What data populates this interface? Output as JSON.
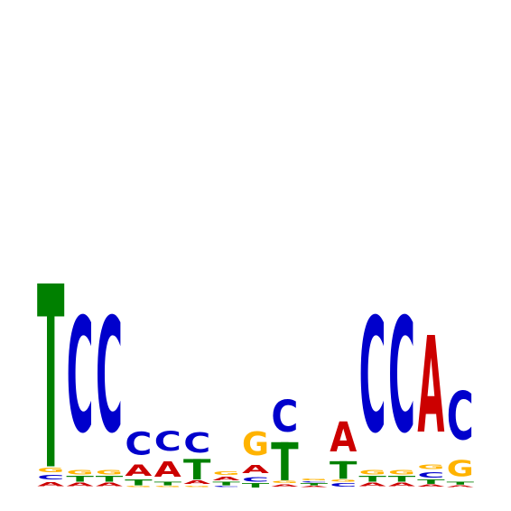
{
  "chart_data": {
    "type": "sequence-logo",
    "title": "",
    "xlabel": "",
    "ylabel": "",
    "ylim": [
      0,
      2
    ],
    "alphabet": [
      "A",
      "C",
      "G",
      "T"
    ],
    "colors": {
      "A": "#cc0000",
      "C": "#0000cc",
      "G": "#ffb300",
      "T": "#008000"
    },
    "positions": [
      {
        "pos": 1,
        "letters": [
          {
            "base": "A",
            "height": 0.045
          },
          {
            "base": "C",
            "height": 0.05
          },
          {
            "base": "G",
            "height": 0.05
          },
          {
            "base": "T",
            "height": 1.25
          }
        ]
      },
      {
        "pos": 2,
        "letters": [
          {
            "base": "A",
            "height": 0.04
          },
          {
            "base": "T",
            "height": 0.04
          },
          {
            "base": "G",
            "height": 0.05
          },
          {
            "base": "C",
            "height": 1.26
          }
        ]
      },
      {
        "pos": 3,
        "letters": [
          {
            "base": "A",
            "height": 0.04
          },
          {
            "base": "T",
            "height": 0.04
          },
          {
            "base": "G",
            "height": 0.05
          },
          {
            "base": "C",
            "height": 1.26
          }
        ]
      },
      {
        "pos": 4,
        "letters": [
          {
            "base": "G",
            "height": 0.015
          },
          {
            "base": "T",
            "height": 0.04
          },
          {
            "base": "A",
            "height": 0.12
          },
          {
            "base": "C",
            "height": 0.25
          }
        ]
      },
      {
        "pos": 5,
        "letters": [
          {
            "base": "G",
            "height": 0.015
          },
          {
            "base": "T",
            "height": 0.025
          },
          {
            "base": "A",
            "height": 0.17
          },
          {
            "base": "C",
            "height": 0.21
          }
        ]
      },
      {
        "pos": 6,
        "letters": [
          {
            "base": "G",
            "height": 0.015
          },
          {
            "base": "A",
            "height": 0.04
          },
          {
            "base": "T",
            "height": 0.14
          },
          {
            "base": "C",
            "height": 0.22
          }
        ]
      },
      {
        "pos": 7,
        "letters": [
          {
            "base": "C",
            "height": 0.015
          },
          {
            "base": "T",
            "height": 0.025
          },
          {
            "base": "A",
            "height": 0.04
          },
          {
            "base": "G",
            "height": 0.035
          }
        ]
      },
      {
        "pos": 8,
        "letters": [
          {
            "base": "T",
            "height": 0.03
          },
          {
            "base": "C",
            "height": 0.05
          },
          {
            "base": "A",
            "height": 0.09
          },
          {
            "base": "G",
            "height": 0.26
          }
        ]
      },
      {
        "pos": 9,
        "letters": [
          {
            "base": "A",
            "height": 0.025
          },
          {
            "base": "G",
            "height": 0.025
          },
          {
            "base": "T",
            "height": 0.26
          },
          {
            "base": "C",
            "height": 0.35
          }
        ]
      },
      {
        "pos": 10,
        "letters": [
          {
            "base": "A",
            "height": 0.015
          },
          {
            "base": "T",
            "height": 0.015
          },
          {
            "base": "C",
            "height": 0.015
          },
          {
            "base": "G",
            "height": 0.02
          }
        ]
      },
      {
        "pos": 11,
        "letters": [
          {
            "base": "C",
            "height": 0.035
          },
          {
            "base": "G",
            "height": 0.025
          },
          {
            "base": "T",
            "height": 0.12
          },
          {
            "base": "A",
            "height": 0.33
          }
        ]
      },
      {
        "pos": 12,
        "letters": [
          {
            "base": "A",
            "height": 0.04
          },
          {
            "base": "T",
            "height": 0.04
          },
          {
            "base": "G",
            "height": 0.05
          },
          {
            "base": "C",
            "height": 1.26
          }
        ]
      },
      {
        "pos": 13,
        "letters": [
          {
            "base": "A",
            "height": 0.04
          },
          {
            "base": "T",
            "height": 0.04
          },
          {
            "base": "G",
            "height": 0.05
          },
          {
            "base": "C",
            "height": 1.26
          }
        ]
      },
      {
        "pos": 14,
        "letters": [
          {
            "base": "A",
            "height": 0.025
          },
          {
            "base": "T",
            "height": 0.03
          },
          {
            "base": "C",
            "height": 0.06
          },
          {
            "base": "G",
            "height": 0.05
          },
          {
            "base": "A",
            "height": 1.06
          }
        ]
      },
      {
        "pos": 15,
        "letters": [
          {
            "base": "A",
            "height": 0.02
          },
          {
            "base": "T",
            "height": 0.02
          },
          {
            "base": "G",
            "height": 0.18
          },
          {
            "base": "C",
            "height": 0.53
          }
        ]
      }
    ]
  }
}
